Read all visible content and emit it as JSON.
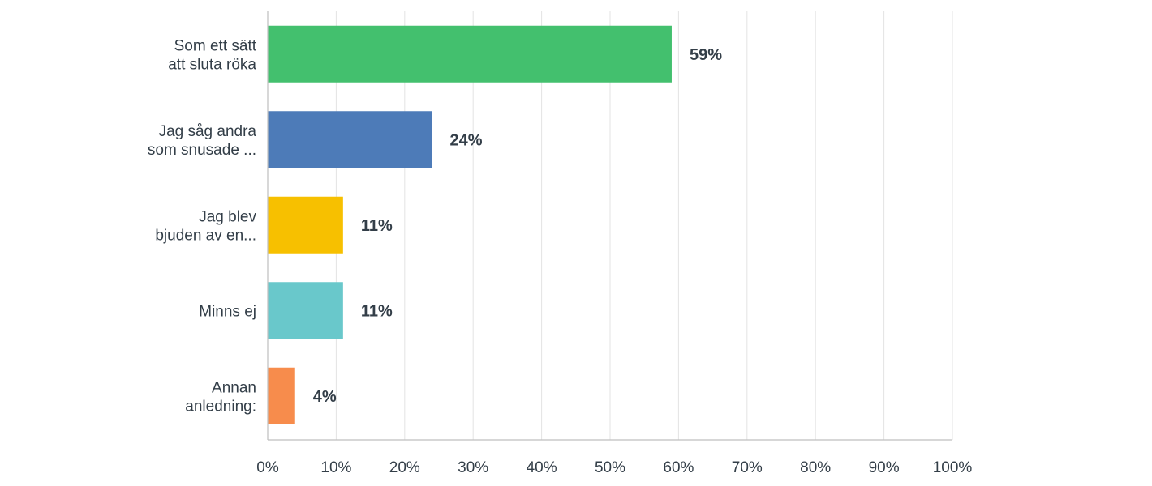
{
  "chart_data": {
    "type": "bar",
    "orientation": "horizontal",
    "categories": [
      [
        "Som ett sätt",
        "att sluta röka"
      ],
      [
        "Jag såg andra",
        "som snusade ..."
      ],
      [
        "Jag blev",
        "bjuden av en..."
      ],
      [
        "Minns ej"
      ],
      [
        "Annan",
        "anledning:"
      ]
    ],
    "values": [
      59,
      24,
      11,
      11,
      4
    ],
    "value_labels": [
      "59%",
      "24%",
      "11%",
      "11%",
      "4%"
    ],
    "colors": [
      "#43c06e",
      "#4d7bb8",
      "#f7c000",
      "#69c8cb",
      "#f78c4c"
    ],
    "xlim": [
      0,
      100
    ],
    "xticks": [
      0,
      10,
      20,
      30,
      40,
      50,
      60,
      70,
      80,
      90,
      100
    ],
    "xtick_labels": [
      "0%",
      "10%",
      "20%",
      "30%",
      "40%",
      "50%",
      "60%",
      "70%",
      "80%",
      "90%",
      "100%"
    ],
    "grid": true,
    "title": "",
    "xlabel": "",
    "ylabel": ""
  }
}
